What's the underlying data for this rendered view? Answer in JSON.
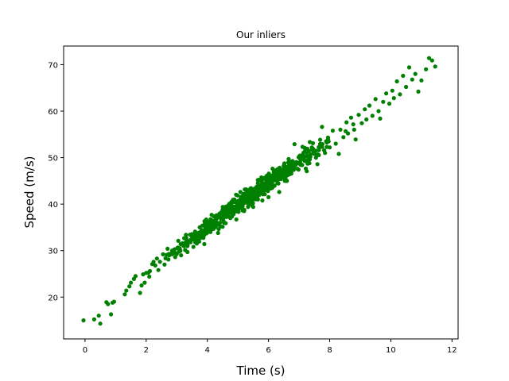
{
  "chart_data": {
    "type": "scatter",
    "title": "Our inliers",
    "xlabel": "Time (s)",
    "ylabel": "Speed (m/s)",
    "xlim": [
      -0.7,
      12.2
    ],
    "ylim": [
      11.0,
      74.0
    ],
    "xticks": [
      0,
      2,
      4,
      6,
      8,
      10,
      12
    ],
    "yticks": [
      20,
      30,
      40,
      50,
      60,
      70
    ],
    "grid": false,
    "legend": "none",
    "series": [
      {
        "color": "#008000",
        "trend": {
          "intercept": 15.5,
          "slope": 4.85
        },
        "points": [
          [
            -0.05,
            15.0
          ],
          [
            0.3,
            15.2
          ],
          [
            0.45,
            16.0
          ],
          [
            0.5,
            14.3
          ],
          [
            0.7,
            18.9
          ],
          [
            0.75,
            18.5
          ],
          [
            0.85,
            16.3
          ],
          [
            0.9,
            18.8
          ],
          [
            0.95,
            19.0
          ],
          [
            1.3,
            20.6
          ],
          [
            1.35,
            21.4
          ],
          [
            1.45,
            22.3
          ],
          [
            1.5,
            23.1
          ],
          [
            1.6,
            23.9
          ],
          [
            1.65,
            24.5
          ],
          [
            1.8,
            20.9
          ],
          [
            1.85,
            22.5
          ],
          [
            1.9,
            24.9
          ],
          [
            1.95,
            23.1
          ],
          [
            2.0,
            25.2
          ],
          [
            2.1,
            24.4
          ],
          [
            2.2,
            27.1
          ],
          [
            2.3,
            26.8
          ],
          [
            2.35,
            28.3
          ],
          [
            2.45,
            27.6
          ],
          [
            2.55,
            29.2
          ],
          [
            2.6,
            27.0
          ],
          [
            2.7,
            30.4
          ],
          [
            2.75,
            29.0
          ],
          [
            2.85,
            30.0
          ],
          [
            2.95,
            28.6
          ],
          [
            3.05,
            32.1
          ],
          [
            3.1,
            30.5
          ],
          [
            3.2,
            31.2
          ],
          [
            3.3,
            33.4
          ],
          [
            3.35,
            29.7
          ],
          [
            3.45,
            31.8
          ],
          [
            3.5,
            33.0
          ],
          [
            3.6,
            34.1
          ],
          [
            3.65,
            32.4
          ],
          [
            3.75,
            35.0
          ],
          [
            3.8,
            33.2
          ],
          [
            3.9,
            31.4
          ],
          [
            3.95,
            34.9
          ],
          [
            4.05,
            36.2
          ],
          [
            4.1,
            34.0
          ],
          [
            4.2,
            35.6
          ],
          [
            4.3,
            37.6
          ],
          [
            4.35,
            33.8
          ],
          [
            4.45,
            36.8
          ],
          [
            4.5,
            38.8
          ],
          [
            4.6,
            35.9
          ],
          [
            4.65,
            39.5
          ],
          [
            4.75,
            37.0
          ],
          [
            4.8,
            38.2
          ],
          [
            4.9,
            40.5
          ],
          [
            4.95,
            36.7
          ],
          [
            5.05,
            39.1
          ],
          [
            5.1,
            41.6
          ],
          [
            5.2,
            38.5
          ],
          [
            5.25,
            42.3
          ],
          [
            5.35,
            40.0
          ],
          [
            5.4,
            43.2
          ],
          [
            5.5,
            39.4
          ],
          [
            5.55,
            41.2
          ],
          [
            5.65,
            44.5
          ],
          [
            5.7,
            42.0
          ],
          [
            5.8,
            40.8
          ],
          [
            5.85,
            45.6
          ],
          [
            5.95,
            43.2
          ],
          [
            6.0,
            41.5
          ],
          [
            6.1,
            45.9
          ],
          [
            6.2,
            44.0
          ],
          [
            6.25,
            47.3
          ],
          [
            6.35,
            42.6
          ],
          [
            6.45,
            46.1
          ],
          [
            6.5,
            48.2
          ],
          [
            6.6,
            45.0
          ],
          [
            6.7,
            49.0
          ],
          [
            6.75,
            46.6
          ],
          [
            6.85,
            52.9
          ],
          [
            6.95,
            47.6
          ],
          [
            7.0,
            50.2
          ],
          [
            7.1,
            48.4
          ],
          [
            7.2,
            51.6
          ],
          [
            7.25,
            47.1
          ],
          [
            7.35,
            49.6
          ],
          [
            7.45,
            53.1
          ],
          [
            7.5,
            50.8
          ],
          [
            7.6,
            48.6
          ],
          [
            7.7,
            52.4
          ],
          [
            7.75,
            56.6
          ],
          [
            7.85,
            51.0
          ],
          [
            7.95,
            54.0
          ],
          [
            8.0,
            52.2
          ],
          [
            8.1,
            55.8
          ],
          [
            8.2,
            53.0
          ],
          [
            8.3,
            50.8
          ],
          [
            8.35,
            56.0
          ],
          [
            8.45,
            54.4
          ],
          [
            8.55,
            57.6
          ],
          [
            8.6,
            55.2
          ],
          [
            8.7,
            58.6
          ],
          [
            8.8,
            56.0
          ],
          [
            8.85,
            53.9
          ],
          [
            8.95,
            59.2
          ],
          [
            9.05,
            57.4
          ],
          [
            9.15,
            60.4
          ],
          [
            9.2,
            58.2
          ],
          [
            9.3,
            61.2
          ],
          [
            9.4,
            59.0
          ],
          [
            9.5,
            62.6
          ],
          [
            9.6,
            60.0
          ],
          [
            9.65,
            58.4
          ],
          [
            9.75,
            62.0
          ],
          [
            9.85,
            63.8
          ],
          [
            9.95,
            61.6
          ],
          [
            10.05,
            64.4
          ],
          [
            10.1,
            62.8
          ],
          [
            10.2,
            66.4
          ],
          [
            10.3,
            63.6
          ],
          [
            10.4,
            67.6
          ],
          [
            10.5,
            65.2
          ],
          [
            10.6,
            69.4
          ],
          [
            10.7,
            66.8
          ],
          [
            10.8,
            68.0
          ],
          [
            10.9,
            64.2
          ],
          [
            11.0,
            66.6
          ],
          [
            11.15,
            69.0
          ],
          [
            11.25,
            71.4
          ],
          [
            11.35,
            70.9
          ],
          [
            11.45,
            69.6
          ]
        ]
      }
    ]
  }
}
